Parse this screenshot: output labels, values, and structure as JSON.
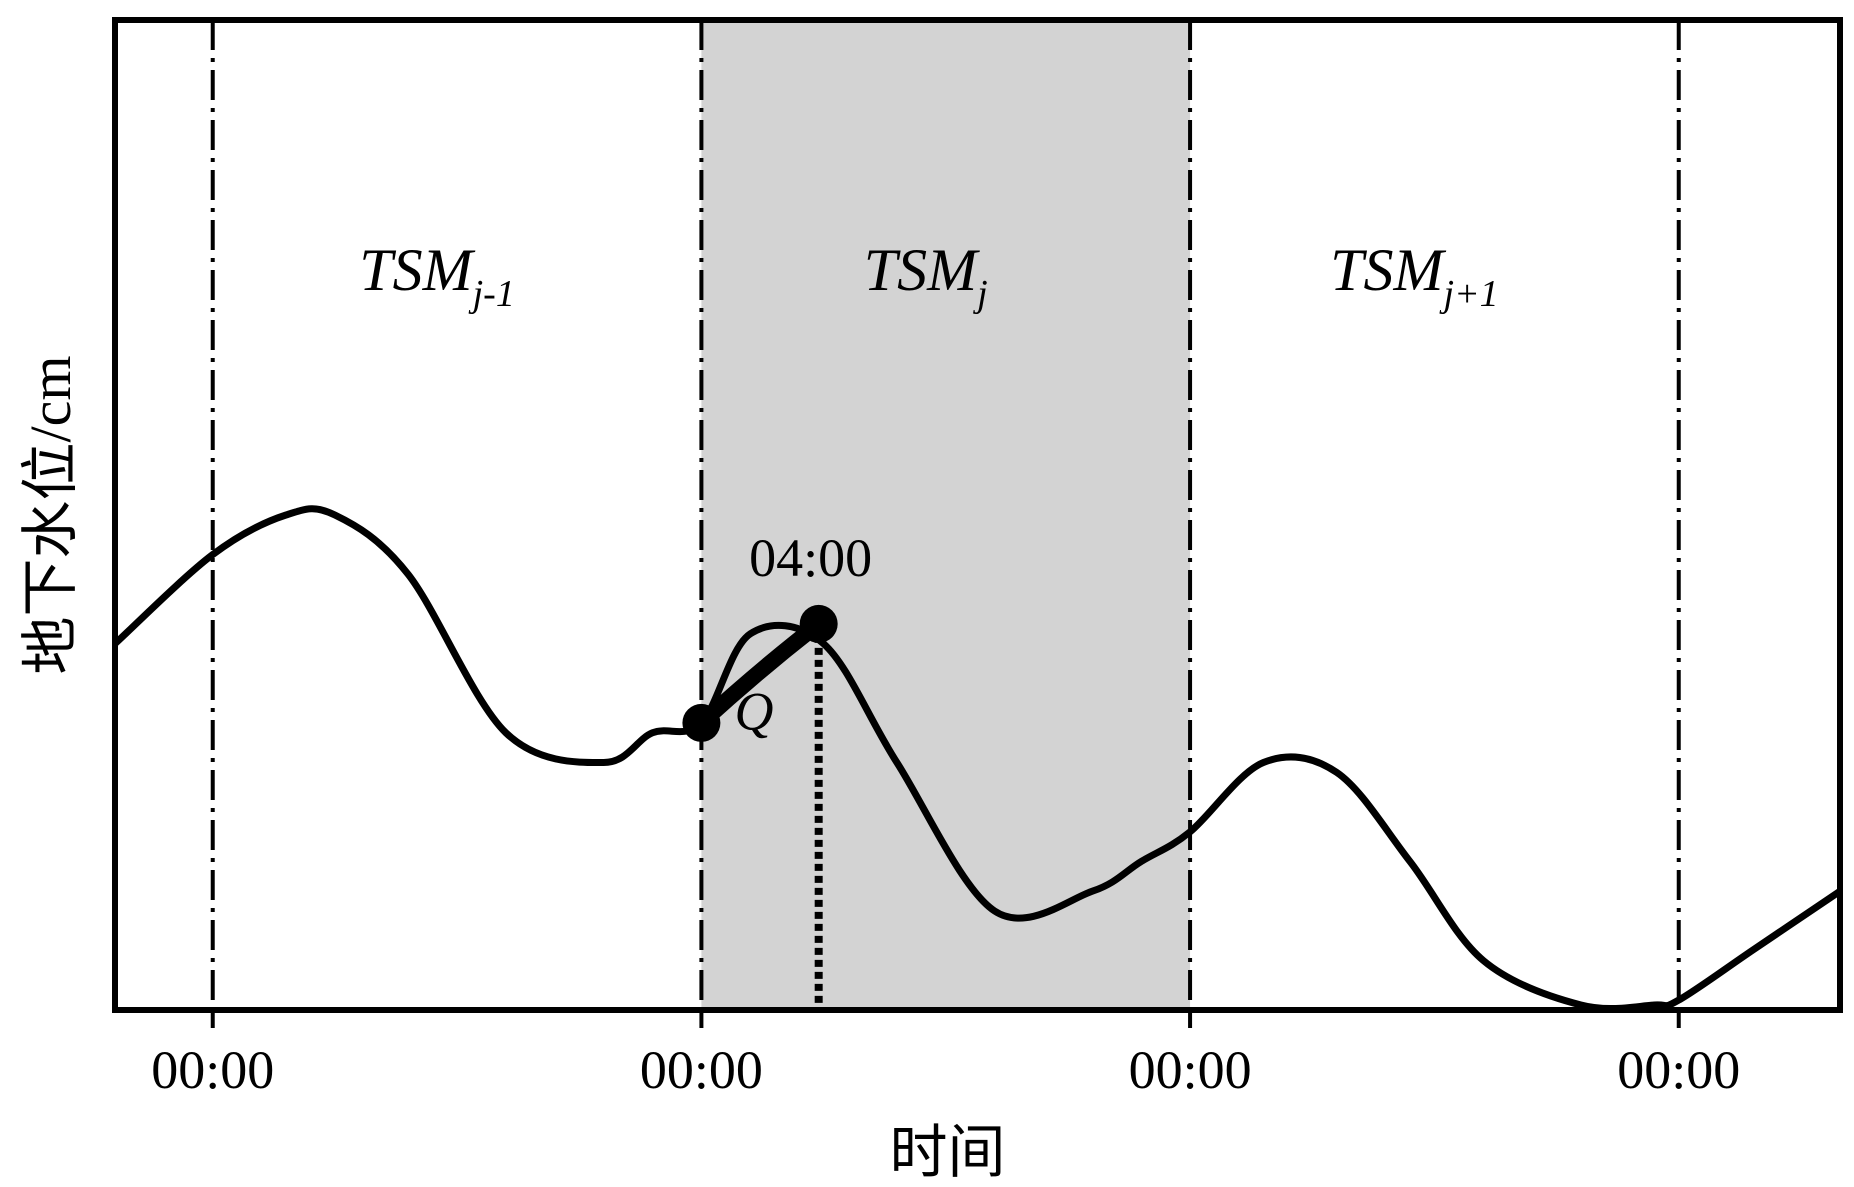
{
  "chart_data": {
    "type": "line",
    "xlabel": "时间",
    "ylabel": "地下水位/cm",
    "x_domain": [
      -0.2,
      3.33
    ],
    "y_domain": [
      0,
      100
    ],
    "x_tick_positions": [
      0,
      1,
      2,
      3
    ],
    "x_tick_labels": [
      "00:00",
      "00:00",
      "00:00",
      "00:00"
    ],
    "grid": false,
    "periods": [
      {
        "main": "TSM",
        "sub": "j-1",
        "start": 0,
        "end": 1,
        "highlighted": false
      },
      {
        "main": "TSM",
        "sub": "j",
        "start": 1,
        "end": 2,
        "highlighted": true
      },
      {
        "main": "TSM",
        "sub": "j+1",
        "start": 2,
        "end": 3,
        "highlighted": false
      }
    ],
    "highlight_color": "#d3d3d3",
    "series": [
      {
        "x": [
          -0.2,
          0.0,
          0.15,
          0.25,
          0.4,
          0.6,
          0.8,
          0.9,
          1.0,
          1.1,
          1.25,
          1.4,
          1.6,
          1.8,
          1.9,
          2.0,
          2.15,
          2.3,
          2.45,
          2.6,
          2.8,
          2.95,
          3.0,
          3.15,
          3.33
        ],
        "y": [
          37,
          46,
          50,
          50,
          44,
          28,
          25,
          28,
          29,
          38,
          37,
          25,
          10,
          12,
          15,
          18,
          25,
          24,
          15,
          5,
          0.5,
          0.5,
          1,
          6,
          12
        ]
      }
    ],
    "segment_q": {
      "x_start": 1.0,
      "x_end": 1.24,
      "y_start": 29,
      "y_end": 39
    },
    "marker_time": {
      "x": 1.24,
      "y": 39,
      "label": "04:00"
    },
    "segment_label": "Q"
  }
}
